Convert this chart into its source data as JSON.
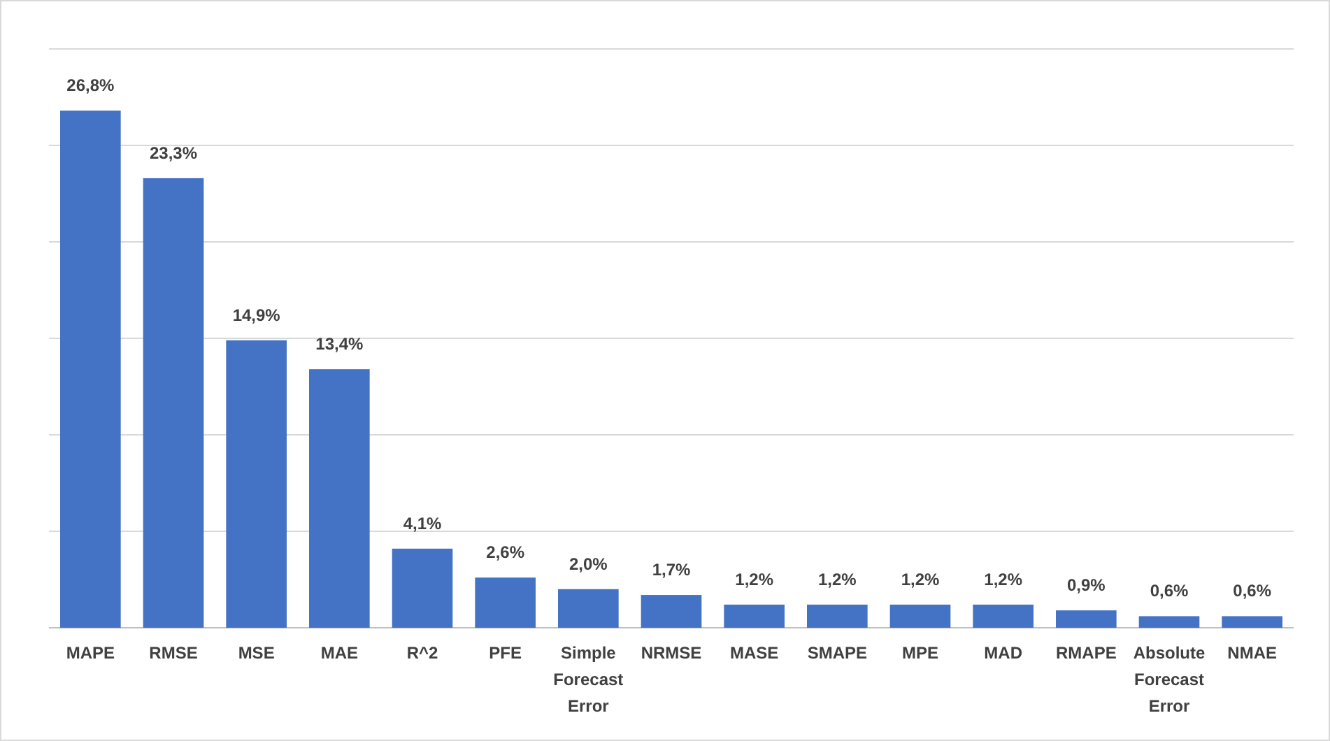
{
  "chart_data": {
    "type": "bar",
    "categories": [
      "MAPE",
      "RMSE",
      "MSE",
      "MAE",
      "R^2",
      "PFE",
      "Simple Forecast Error",
      "NRMSE",
      "MASE",
      "SMAPE",
      "MPE",
      "MAD",
      "RMAPE",
      "Absolute Forecast Error",
      "NMAE"
    ],
    "values": [
      26.8,
      23.3,
      14.9,
      13.4,
      4.1,
      2.6,
      2.0,
      1.7,
      1.2,
      1.2,
      1.2,
      1.2,
      0.9,
      0.6,
      0.6
    ],
    "value_labels": [
      "26,8%",
      "23,3%",
      "14,9%",
      "13,4%",
      "4,1%",
      "2,6%",
      "2,0%",
      "1,7%",
      "1,2%",
      "1,2%",
      "1,2%",
      "1,2%",
      "0,9%",
      "0,6%",
      "0,6%"
    ],
    "color": "#4472c4",
    "ylim": [
      0,
      30
    ],
    "yticks": [
      {
        "value": 0,
        "label": null
      },
      {
        "value": 5,
        "label": null
      },
      {
        "value": 10,
        "label": null
      },
      {
        "value": 15,
        "label": null
      },
      {
        "value": 20,
        "label": null
      },
      {
        "value": 25,
        "label": null
      },
      {
        "value": 30,
        "label": null
      }
    ],
    "grid": "y",
    "tick_labels": "x"
  }
}
